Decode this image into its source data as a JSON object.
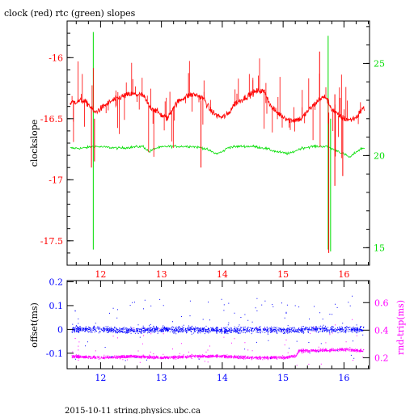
{
  "title": "clock (red) rtc (green) slopes",
  "footer": "2015-10-11 string.physics.ubc.ca",
  "colors": {
    "frame": "#000000",
    "clock": "#ff0000",
    "rtc": "#00dd00",
    "offset": "#0000ff",
    "rtt": "#ff00ff"
  },
  "chart_data": [
    {
      "type": "line",
      "title": "clock (red) rtc (green) slopes",
      "xlim": [
        11.45,
        16.42
      ],
      "x_ticks": [
        12,
        13,
        14,
        15,
        16
      ],
      "x_tick_labels": [
        "12",
        "13",
        "14",
        "15",
        "16"
      ],
      "ylabel": "clockslope",
      "ylim": [
        -17.7,
        -15.7
      ],
      "y_ticks": [
        -16,
        -16.5,
        -17,
        -17.5
      ],
      "y_tick_labels": [
        "-16",
        "-16.5",
        "-17",
        "-17.5"
      ],
      "y2lim": [
        14.05,
        27.3
      ],
      "y2_ticks": [
        15,
        20,
        25
      ],
      "y2_tick_labels": [
        "15",
        "20",
        "25"
      ],
      "series": [
        {
          "axis": "left",
          "x": [
            11.5,
            11.6,
            11.7,
            11.8,
            11.9,
            12.0,
            12.1,
            12.2,
            12.3,
            12.4,
            12.5,
            12.6,
            12.7,
            12.8,
            12.9,
            13.0,
            13.1,
            13.2,
            13.3,
            13.4,
            13.5,
            13.6,
            13.7,
            13.8,
            13.9,
            14.0,
            14.1,
            14.2,
            14.3,
            14.4,
            14.5,
            14.6,
            14.7,
            14.8,
            14.9,
            15.0,
            15.1,
            15.2,
            15.3,
            15.4,
            15.5,
            15.6,
            15.7,
            15.8,
            15.9,
            16.0,
            16.1,
            16.2,
            16.3
          ],
          "values": [
            -16.37,
            -16.36,
            -16.35,
            -16.38,
            -16.45,
            -16.42,
            -16.38,
            -16.35,
            -16.33,
            -16.31,
            -16.3,
            -16.3,
            -16.31,
            -16.4,
            -16.43,
            -16.47,
            -16.5,
            -16.4,
            -16.35,
            -16.32,
            -16.3,
            -16.31,
            -16.34,
            -16.43,
            -16.47,
            -16.49,
            -16.46,
            -16.38,
            -16.35,
            -16.32,
            -16.29,
            -16.27,
            -16.28,
            -16.4,
            -16.45,
            -16.48,
            -16.51,
            -16.51,
            -16.5,
            -16.44,
            -16.39,
            -16.34,
            -16.32,
            -16.42,
            -16.47,
            -16.5,
            -16.51,
            -16.49,
            -16.42
          ]
        },
        {
          "axis": "right",
          "x": [
            11.5,
            11.7,
            11.9,
            12.1,
            12.3,
            12.5,
            12.7,
            12.8,
            12.9,
            13.1,
            13.3,
            13.5,
            13.7,
            13.9,
            14.0,
            14.1,
            14.3,
            14.5,
            14.7,
            14.9,
            15.1,
            15.3,
            15.5,
            15.7,
            15.9,
            16.1,
            16.2,
            16.3
          ],
          "values": [
            20.4,
            20.4,
            20.5,
            20.45,
            20.4,
            20.45,
            20.5,
            20.2,
            20.4,
            20.5,
            20.5,
            20.5,
            20.4,
            20.1,
            20.2,
            20.45,
            20.5,
            20.5,
            20.4,
            20.2,
            20.1,
            20.4,
            20.5,
            20.5,
            20.25,
            19.9,
            20.2,
            20.4
          ]
        }
      ]
    },
    {
      "type": "scatter",
      "xlim": [
        11.45,
        16.42
      ],
      "x_ticks": [
        12,
        13,
        14,
        15,
        16
      ],
      "x_tick_labels": [
        "12",
        "13",
        "14",
        "15",
        "16"
      ],
      "ylabel": "offset(ms)",
      "ylim": [
        -0.165,
        0.205
      ],
      "y_ticks": [
        0.2,
        0.1,
        0,
        -0.1
      ],
      "y_tick_labels": [
        "0.2",
        "0.1",
        "0",
        "-0.1"
      ],
      "y2label": "rnd-trip(ms)",
      "y2lim": [
        0.12,
        0.76
      ],
      "y2_ticks": [
        0.6,
        0.4,
        0.2
      ],
      "y2_tick_labels": [
        "0.6",
        "0.4",
        "0.2"
      ],
      "series": [
        {
          "axis": "left",
          "x": [
            11.5,
            12.0,
            12.5,
            13.0,
            13.5,
            14.0,
            14.5,
            15.0,
            15.5,
            16.0,
            16.3
          ],
          "values": [
            0.0,
            0.0,
            -0.005,
            0.0,
            0.0,
            -0.005,
            0.0,
            -0.005,
            0.0,
            0.0,
            0.0
          ]
        },
        {
          "axis": "right",
          "x": [
            11.5,
            12.0,
            12.5,
            13.0,
            13.5,
            14.0,
            14.5,
            15.0,
            15.2,
            15.25,
            15.5,
            16.0,
            16.3
          ],
          "values": [
            0.21,
            0.2,
            0.21,
            0.2,
            0.21,
            0.21,
            0.2,
            0.2,
            0.21,
            0.25,
            0.25,
            0.26,
            0.25
          ]
        }
      ]
    }
  ]
}
